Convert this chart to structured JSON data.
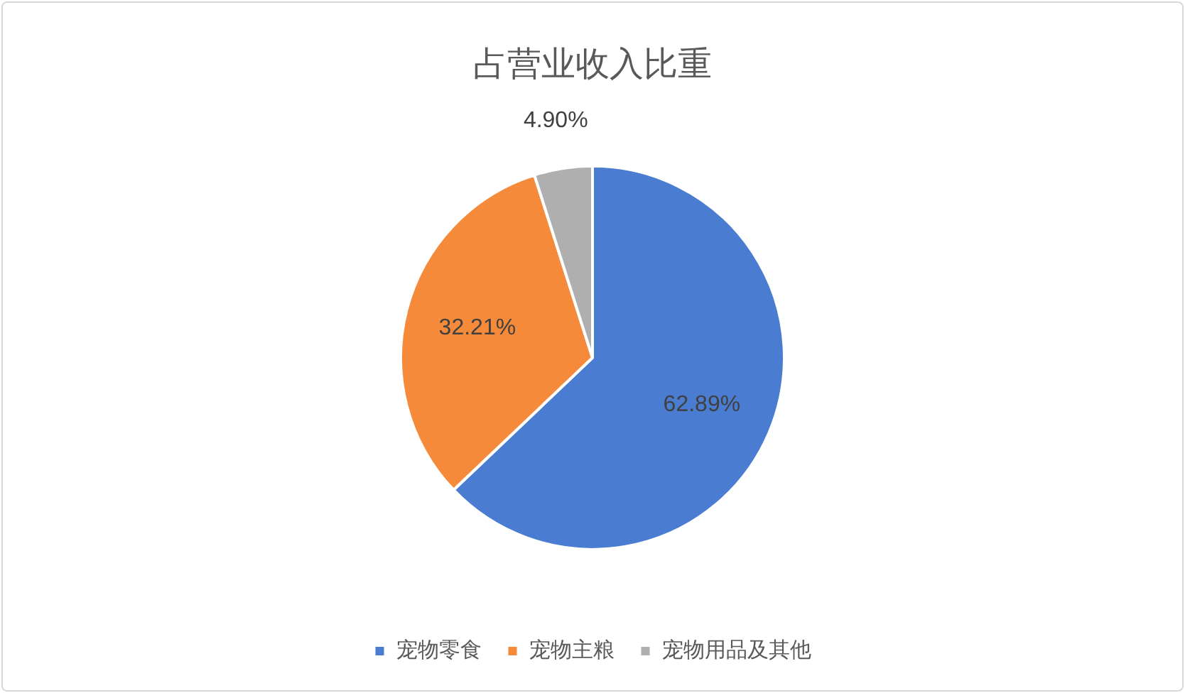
{
  "chart_data": {
    "type": "pie",
    "title": "占营业收入比重",
    "categories": [
      "宠物零食",
      "宠物主粮",
      "宠物用品及其他"
    ],
    "values": [
      62.89,
      32.21,
      4.9
    ],
    "colors": [
      "#4a7dd1",
      "#f58b3a",
      "#afafaf"
    ],
    "value_labels": [
      "62.89%",
      "32.21%",
      "4.90%"
    ],
    "legend": "bottom"
  }
}
